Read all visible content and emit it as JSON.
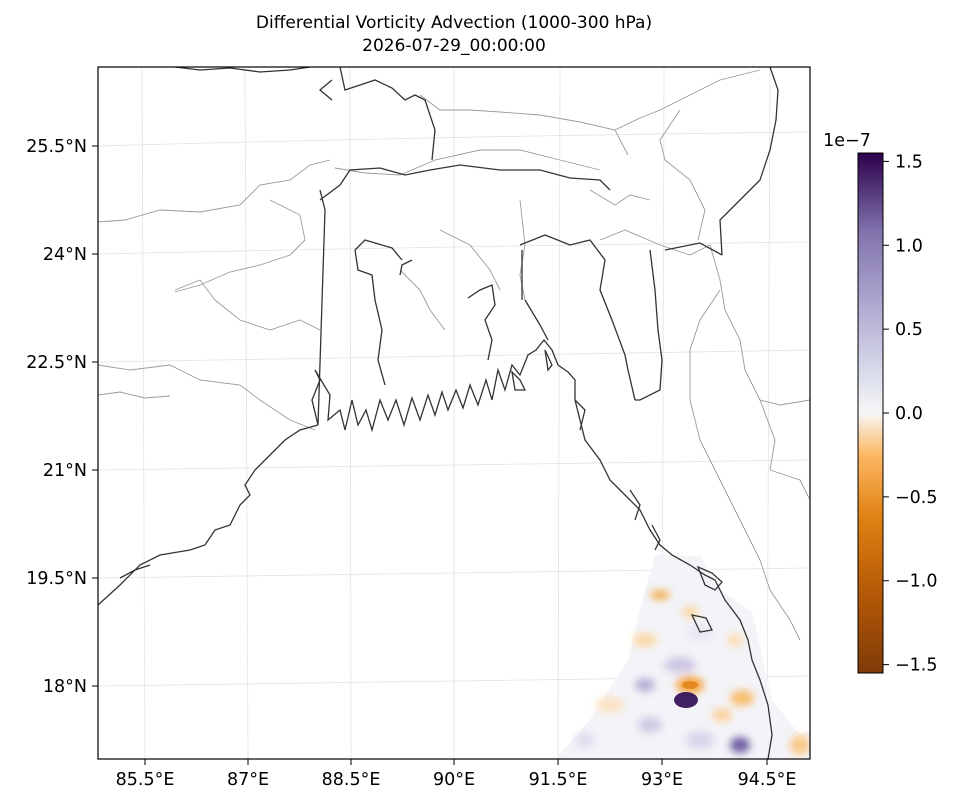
{
  "title": "Differential Vorticity Advection (1000-300 hPa)",
  "subtitle": "2026-07-29_00:00:00",
  "lat_ticks": [
    "25.5°N",
    "24°N",
    "22.5°N",
    "21°N",
    "19.5°N",
    "18°N"
  ],
  "lon_ticks": [
    "85.5°E",
    "87°E",
    "88.5°E",
    "90°E",
    "91.5°E",
    "93°E",
    "94.5°E"
  ],
  "colorbar": {
    "exponent": "1e−7",
    "ticks": [
      "1.5",
      "1.0",
      "0.5",
      "0.0",
      "−0.5",
      "−1.0",
      "−1.5"
    ],
    "tick_values": [
      1.5,
      1.0,
      0.5,
      0.0,
      -0.5,
      -1.0,
      -1.5
    ],
    "range": [
      -1.55,
      1.55
    ],
    "colormap": "PuOr",
    "colors": [
      "#7f3b08",
      "#e08214",
      "#fdb863",
      "#f7f7f7",
      "#b2abd2",
      "#8073ac",
      "#2d004b"
    ]
  },
  "colors": {
    "coastline": "#333333",
    "borders": "#999999",
    "grid": "#e6e6e6"
  }
}
